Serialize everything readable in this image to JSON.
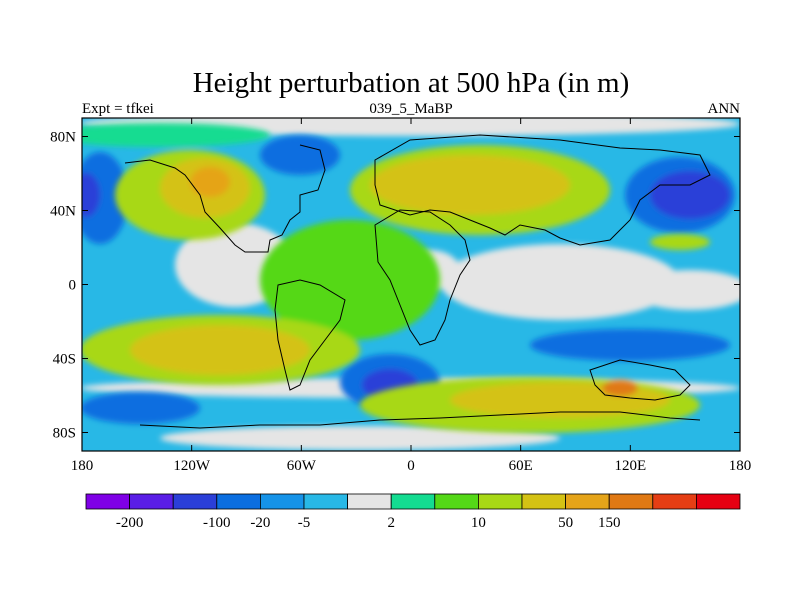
{
  "title": "Height perturbation at 500 hPa (in m)",
  "subtitle_left": "Expt = tfkei",
  "subtitle_center": "039_5_MaBP",
  "subtitle_right": "ANN",
  "map": {
    "lon_range": [
      -180,
      180
    ],
    "lat_range": [
      -90,
      90
    ],
    "x_ticks": [
      {
        "value": -180,
        "label": "180"
      },
      {
        "value": -120,
        "label": "120W"
      },
      {
        "value": -60,
        "label": "60W"
      },
      {
        "value": 0,
        "label": "0"
      },
      {
        "value": 60,
        "label": "60E"
      },
      {
        "value": 120,
        "label": "120E"
      },
      {
        "value": 180,
        "label": "180"
      }
    ],
    "y_ticks": [
      {
        "value": 80,
        "label": "80N"
      },
      {
        "value": 40,
        "label": "40N"
      },
      {
        "value": 0,
        "label": "0"
      },
      {
        "value": -40,
        "label": "40S"
      },
      {
        "value": -80,
        "label": "80S"
      }
    ]
  },
  "colorbar": {
    "colors": [
      "#7f00e6",
      "#5a1ee6",
      "#2b3fd8",
      "#0b6ee0",
      "#1693e8",
      "#28b8e6",
      "#e5e5e5",
      "#14dc91",
      "#54d817",
      "#a8d816",
      "#d4c214",
      "#e5a419",
      "#e07914",
      "#e53e14",
      "#e60012"
    ],
    "label_items": [
      {
        "after_box": 1,
        "label": "-200"
      },
      {
        "after_box": 3,
        "label": "-100"
      },
      {
        "after_box": 4,
        "label": "-20"
      },
      {
        "after_box": 5,
        "label": "-5"
      },
      {
        "after_box": 7,
        "label": "2"
      },
      {
        "after_box": 9,
        "label": "10"
      },
      {
        "after_box": 11,
        "label": "50"
      },
      {
        "after_box": 12,
        "label": "150"
      }
    ]
  }
}
